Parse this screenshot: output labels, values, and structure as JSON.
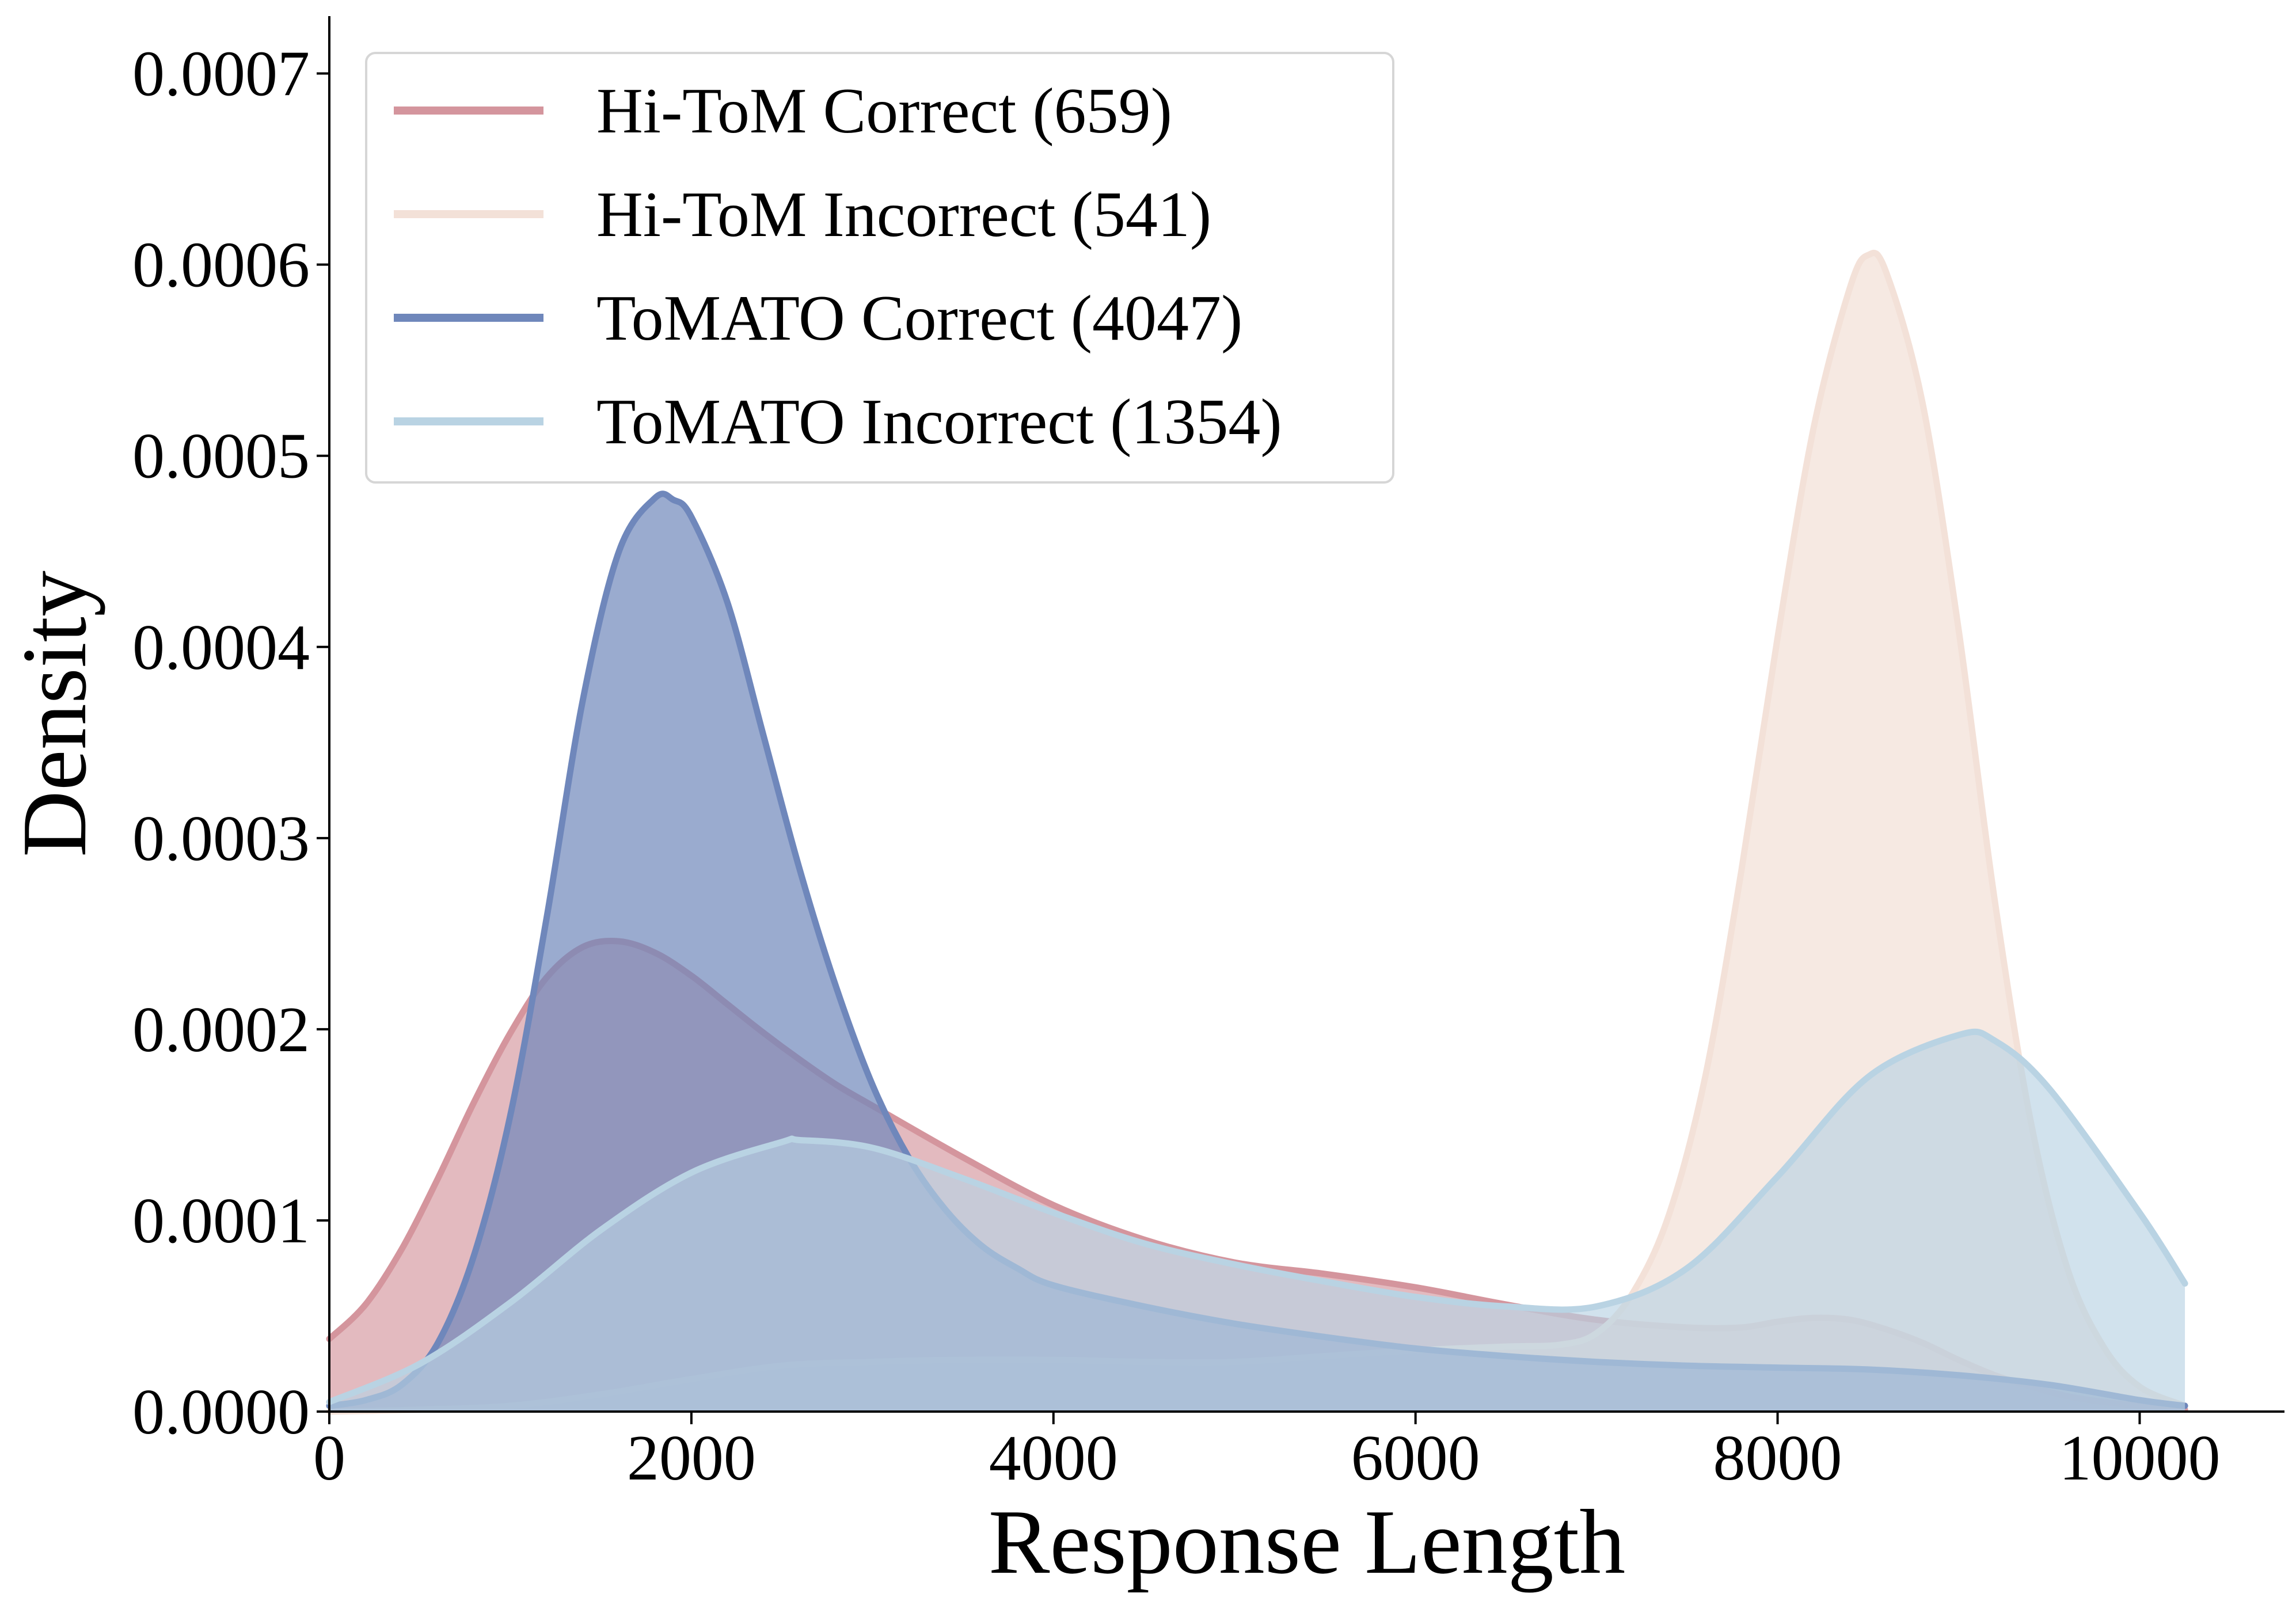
{
  "chart_data": {
    "type": "area",
    "subtype": "kde-density",
    "title": "",
    "xlabel": "Response Length",
    "ylabel": "Density",
    "xlim": [
      0,
      10800
    ],
    "ylim": [
      0,
      0.00073
    ],
    "x_ticks": [
      0,
      2000,
      4000,
      6000,
      8000,
      10000
    ],
    "x_tick_labels": [
      "0",
      "2000",
      "4000",
      "6000",
      "8000",
      "10000"
    ],
    "y_ticks": [
      0,
      0.0001,
      0.0002,
      0.0003,
      0.0004,
      0.0005,
      0.0006,
      0.0007
    ],
    "y_tick_labels": [
      "0.0000",
      "0.0001",
      "0.0002",
      "0.0003",
      "0.0004",
      "0.0005",
      "0.0006",
      "0.0007"
    ],
    "grid": false,
    "legend_position": "top-left",
    "series": [
      {
        "name": "Hi-ToM Correct (659)",
        "line_color": "#d4959d",
        "fill_color": "#d4959d",
        "fill_opacity": 0.65,
        "x": [
          0,
          200,
          400,
          600,
          800,
          1000,
          1200,
          1400,
          1600,
          1800,
          2000,
          2200,
          2400,
          2600,
          2800,
          3000,
          3500,
          4000,
          4500,
          5000,
          5500,
          6000,
          6500,
          7000,
          7500,
          7800,
          8000,
          8200,
          8400,
          8600,
          8800,
          9000,
          9200,
          9400,
          9600,
          9800,
          10000,
          10250
        ],
        "y": [
          3.8e-05,
          5.6e-05,
          8.5e-05,
          0.000122,
          0.000162,
          0.000198,
          0.000227,
          0.000243,
          0.000246,
          0.00024,
          0.000228,
          0.000213,
          0.000198,
          0.000184,
          0.000171,
          0.00016,
          0.000133,
          0.000108,
          9e-05,
          7.8e-05,
          7.2e-05,
          6.5e-05,
          5.6e-05,
          4.8e-05,
          4.4e-05,
          4.4e-05,
          4.7e-05,
          4.9e-05,
          4.8e-05,
          4.3e-05,
          3.6e-05,
          2.7e-05,
          1.9e-05,
          1.3e-05,
          8e-06,
          5e-06,
          3e-06,
          1e-06
        ]
      },
      {
        "name": "Hi-ToM Incorrect (541)",
        "line_color": "#f3e1d8",
        "fill_color": "#f3e1d8",
        "fill_opacity": 0.75,
        "x": [
          0,
          500,
          1000,
          1500,
          2000,
          2500,
          3000,
          3500,
          4000,
          4500,
          5000,
          5500,
          6000,
          6500,
          6800,
          7000,
          7200,
          7400,
          7600,
          7800,
          8000,
          8200,
          8400,
          8500,
          8600,
          8800,
          9000,
          9200,
          9400,
          9600,
          9800,
          10000,
          10250
        ],
        "y": [
          0,
          1e-06,
          3e-06,
          9e-06,
          1.7e-05,
          2.4e-05,
          2.6e-05,
          2.7e-05,
          2.7e-05,
          2.6e-05,
          2.6e-05,
          2.9e-05,
          3.2e-05,
          3.4e-05,
          3.5e-05,
          4.1e-05,
          6.2e-05,
          0.000103,
          0.000175,
          0.000283,
          0.000405,
          0.000515,
          0.000588,
          0.000605,
          0.000596,
          0.000528,
          0.000409,
          0.000267,
          0.000151,
          7.5e-05,
          3.4e-05,
          1.3e-05,
          3e-06
        ]
      },
      {
        "name": "ToMATO Correct (4047)",
        "line_color": "#6f87bb",
        "fill_color": "#6f87bb",
        "fill_opacity": 0.7,
        "x": [
          0,
          200,
          400,
          600,
          800,
          1000,
          1200,
          1400,
          1600,
          1800,
          1900,
          2000,
          2200,
          2400,
          2600,
          2800,
          3000,
          3200,
          3400,
          3600,
          3800,
          4000,
          4500,
          5000,
          5500,
          6000,
          6500,
          7000,
          7500,
          8000,
          8500,
          9000,
          9500,
          10000,
          10250
        ],
        "y": [
          3e-06,
          6e-06,
          1.4e-05,
          3.6e-05,
          8.2e-05,
          0.000155,
          0.000258,
          0.000372,
          0.00045,
          0.000478,
          0.000477,
          0.000468,
          0.000423,
          0.000353,
          0.000283,
          0.000222,
          0.000171,
          0.000133,
          0.000106,
          8.7e-05,
          7.5e-05,
          6.6e-05,
          5.5e-05,
          4.6e-05,
          3.9e-05,
          3.3e-05,
          2.9e-05,
          2.6e-05,
          2.4e-05,
          2.3e-05,
          2.2e-05,
          1.9e-05,
          1.4e-05,
          6e-06,
          3e-06
        ]
      },
      {
        "name": "ToMATO Incorrect (1354)",
        "line_color": "#b9d3e3",
        "fill_color": "#b9d3e3",
        "fill_opacity": 0.65,
        "x": [
          0,
          500,
          1000,
          1500,
          2000,
          2500,
          2600,
          3000,
          3500,
          4000,
          4500,
          5000,
          5500,
          6000,
          6500,
          7000,
          7500,
          8000,
          8500,
          9000,
          9200,
          9500,
          10000,
          10250
        ],
        "y": [
          5e-06,
          2.5e-05,
          5.7e-05,
          9.5e-05,
          0.000125,
          0.000141,
          0.000142,
          0.000138,
          0.000122,
          0.000104,
          8.8e-05,
          7.7e-05,
          6.8e-05,
          6e-05,
          5.5e-05,
          5.5e-05,
          7.5e-05,
          0.000123,
          0.000175,
          0.000197,
          0.000194,
          0.000169,
          0.000104,
          6.7e-05
        ]
      }
    ]
  }
}
